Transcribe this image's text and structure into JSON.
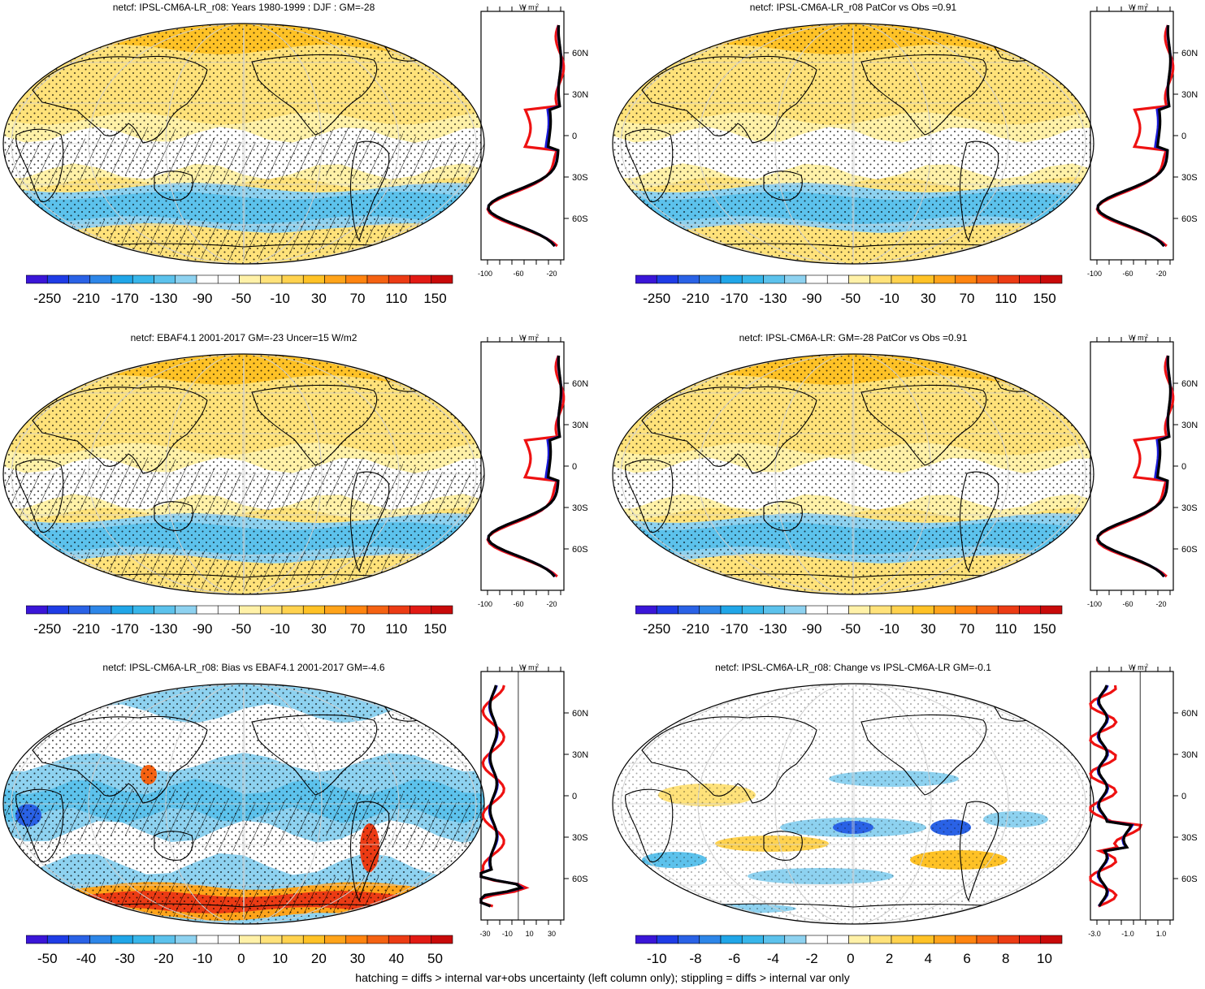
{
  "palettes": {
    "main": [
      "#3a16d8",
      "#1f3ce6",
      "#2a62e6",
      "#2d86e8",
      "#20a6e8",
      "#38b6ea",
      "#5cc2ec",
      "#8ed2f0",
      "#ffffff",
      "#ffffff",
      "#fff1a8",
      "#ffe27a",
      "#ffd24e",
      "#ffc226",
      "#ffa41a",
      "#ff8410",
      "#f56212",
      "#ec3b14",
      "#e21a14",
      "#c80a0a"
    ],
    "bias": [
      "#3a16d8",
      "#1f3ce6",
      "#2a62e6",
      "#2d86e8",
      "#20a6e8",
      "#38b6ea",
      "#5cc2ec",
      "#8ed2f0",
      "#ffffff",
      "#ffffff",
      "#fff1a8",
      "#ffe27a",
      "#ffd24e",
      "#ffc226",
      "#ffa41a",
      "#ff8410",
      "#f56212",
      "#ec3b14",
      "#e21a14",
      "#c80a0a"
    ],
    "change": [
      "#3a16d8",
      "#1f3ce6",
      "#2a62e6",
      "#2d86e8",
      "#20a6e8",
      "#38b6ea",
      "#5cc2ec",
      "#8ed2f0",
      "#ffffff",
      "#ffffff",
      "#fff1a8",
      "#ffe27a",
      "#ffd24e",
      "#ffc226",
      "#ffa41a",
      "#ff8410",
      "#f56212",
      "#ec3b14",
      "#e21a14",
      "#c80a0a"
    ]
  },
  "panels": [
    {
      "id": "p1",
      "title": "netcf: IPSL-CM6A-LR_r08: Years 1980-1999 : DJF : GM=-28",
      "palette": "main",
      "map_style": "yellow",
      "cbar_labels": [
        "-250",
        "-210",
        "-170",
        "-130",
        "-90",
        "-50",
        "-10",
        "30",
        "70",
        "110",
        "150"
      ],
      "zp_unit": "W m",
      "zp_xticks": [
        "-100",
        "-60",
        "-20"
      ],
      "zp_yticks": [
        "60N",
        "30N",
        "0",
        "30S",
        "60S"
      ],
      "hatching": true
    },
    {
      "id": "p2",
      "title": "netcf: IPSL-CM6A-LR_r08 PatCor vs Obs =0.91",
      "palette": "main",
      "map_style": "yellow",
      "cbar_labels": [
        "-250",
        "-210",
        "-170",
        "-130",
        "-90",
        "-50",
        "-10",
        "30",
        "70",
        "110",
        "150"
      ],
      "zp_unit": "W m",
      "zp_xticks": [
        "-100",
        "-60",
        "-20"
      ],
      "zp_yticks": [
        "60N",
        "30N",
        "0",
        "30S",
        "60S"
      ],
      "hatching": false
    },
    {
      "id": "p3",
      "title": "netcf: EBAF4.1 2001-2017 GM=-23 Uncer=15 W/m2",
      "palette": "main",
      "map_style": "yellow",
      "cbar_labels": [
        "-250",
        "-210",
        "-170",
        "-130",
        "-90",
        "-50",
        "-10",
        "30",
        "70",
        "110",
        "150"
      ],
      "zp_unit": "W m",
      "zp_xticks": [
        "-100",
        "-60",
        "-20"
      ],
      "zp_yticks": [
        "60N",
        "30N",
        "0",
        "30S",
        "60S"
      ],
      "hatching": true
    },
    {
      "id": "p4",
      "title": "netcf: IPSL-CM6A-LR: GM=-28 PatCor vs Obs =0.91",
      "palette": "main",
      "map_style": "yellow",
      "cbar_labels": [
        "-250",
        "-210",
        "-170",
        "-130",
        "-90",
        "-50",
        "-10",
        "30",
        "70",
        "110",
        "150"
      ],
      "zp_unit": "W m",
      "zp_xticks": [
        "-100",
        "-60",
        "-20"
      ],
      "zp_yticks": [
        "60N",
        "30N",
        "0",
        "30S",
        "60S"
      ],
      "hatching": false
    },
    {
      "id": "p5",
      "title": "netcf: IPSL-CM6A-LR_r08: Bias vs EBAF4.1 2001-2017 GM=-4.6",
      "palette": "bias",
      "map_style": "bias",
      "cbar_labels": [
        "-50",
        "-40",
        "-30",
        "-20",
        "-10",
        "0",
        "10",
        "20",
        "30",
        "40",
        "50"
      ],
      "zp_unit": "W m",
      "zp_xticks": [
        "-30",
        "-10",
        "10",
        "30"
      ],
      "zp_yticks": [
        "60N",
        "30N",
        "0",
        "30S",
        "60S"
      ],
      "hatching": true
    },
    {
      "id": "p6",
      "title": "netcf: IPSL-CM6A-LR_r08: Change vs IPSL-CM6A-LR GM=-0.1",
      "palette": "change",
      "map_style": "change",
      "cbar_labels": [
        "-10",
        "-8",
        "-6",
        "-4",
        "-2",
        "0",
        "2",
        "4",
        "6",
        "8",
        "10"
      ],
      "zp_unit": "W m",
      "zp_xticks": [
        "-3.0",
        "-1.0",
        "1.0"
      ],
      "zp_yticks": [
        "60N",
        "30N",
        "0",
        "30S",
        "60S"
      ],
      "hatching": false
    }
  ],
  "footnote": "hatching = diffs > internal var+obs uncertainty (left column only); stippling = diffs > internal var only",
  "series_colors": {
    "red": "#ee1111",
    "blue": "#1a1ad8",
    "black": "#000000"
  }
}
